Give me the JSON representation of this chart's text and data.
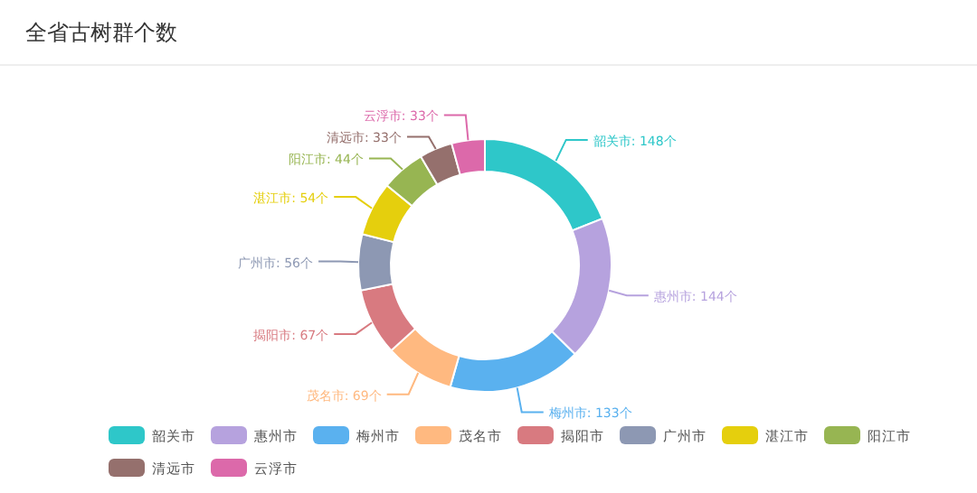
{
  "chart_data": {
    "type": "donut",
    "title": "全省古树群个数",
    "categories": [
      "韶关市",
      "惠州市",
      "梅州市",
      "茂名市",
      "揭阳市",
      "广州市",
      "湛江市",
      "阳江市",
      "清远市",
      "云浮市"
    ],
    "values": [
      148,
      144,
      133,
      69,
      67,
      56,
      54,
      44,
      33,
      33
    ],
    "colors": [
      "#2ec7c9",
      "#b6a2de",
      "#5ab1ef",
      "#ffb980",
      "#d87a80",
      "#8d98b3",
      "#e5cf0d",
      "#97b552",
      "#95706d",
      "#dc69aa"
    ],
    "value_labels": [
      "韶关市: 148个",
      "惠州市: 144个",
      "梅州市: 133个",
      "茂名市: 69个",
      "揭阳市: 67个",
      "广州市: 56个",
      "湛江市: 54个",
      "阳江市: 44个",
      "清远市: 33个",
      "云浮市: 33个"
    ],
    "legend": "bottom"
  }
}
